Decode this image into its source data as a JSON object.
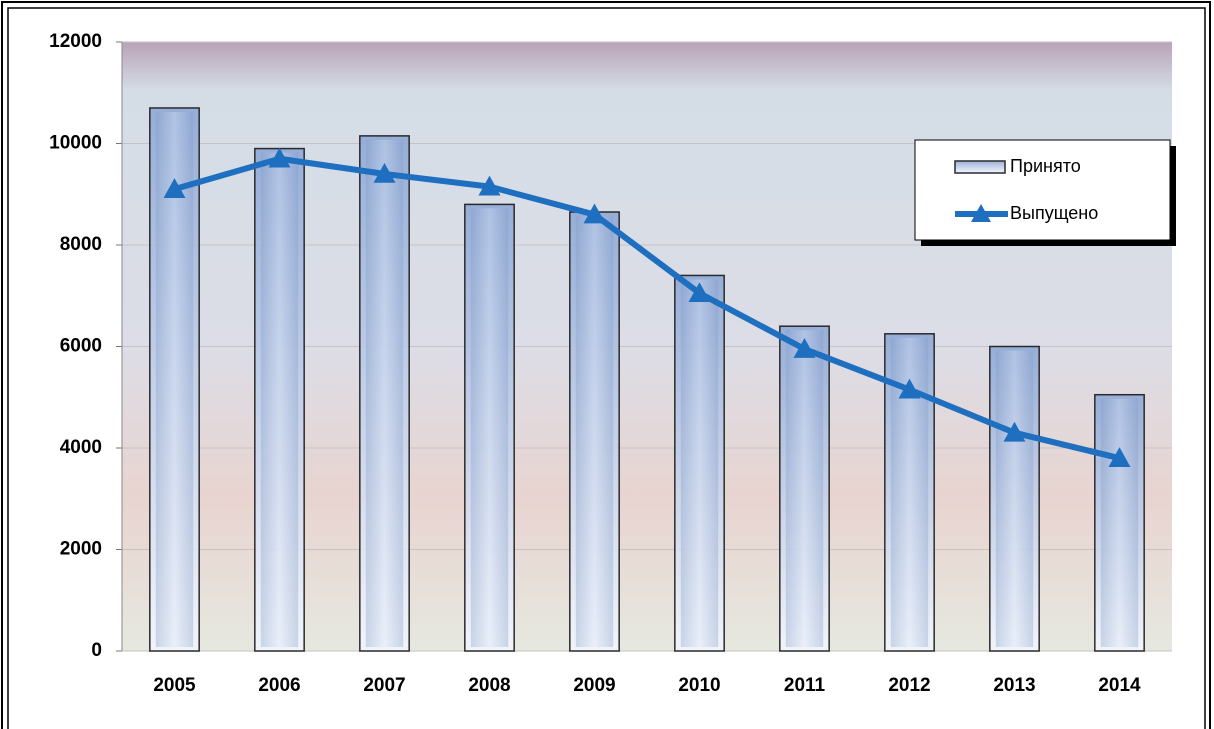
{
  "chart_data": {
    "type": "bar",
    "categories": [
      "2005",
      "2006",
      "2007",
      "2008",
      "2009",
      "2010",
      "2011",
      "2012",
      "2013",
      "2014"
    ],
    "series": [
      {
        "name": "Принято",
        "type": "bar",
        "color": "#8fa9d6",
        "values": [
          10700,
          9900,
          10150,
          8800,
          8650,
          7400,
          6400,
          6250,
          6000,
          5050
        ]
      },
      {
        "name": "Выпущено",
        "type": "line",
        "color": "#1f6fc0",
        "values": [
          9100,
          9700,
          9400,
          9150,
          8600,
          7050,
          5950,
          5150,
          4300,
          3800
        ]
      }
    ],
    "ylim": [
      0,
      12000
    ],
    "yticks": [
      0,
      2000,
      4000,
      6000,
      8000,
      10000,
      12000
    ],
    "grid": true,
    "legend": "top-right"
  }
}
